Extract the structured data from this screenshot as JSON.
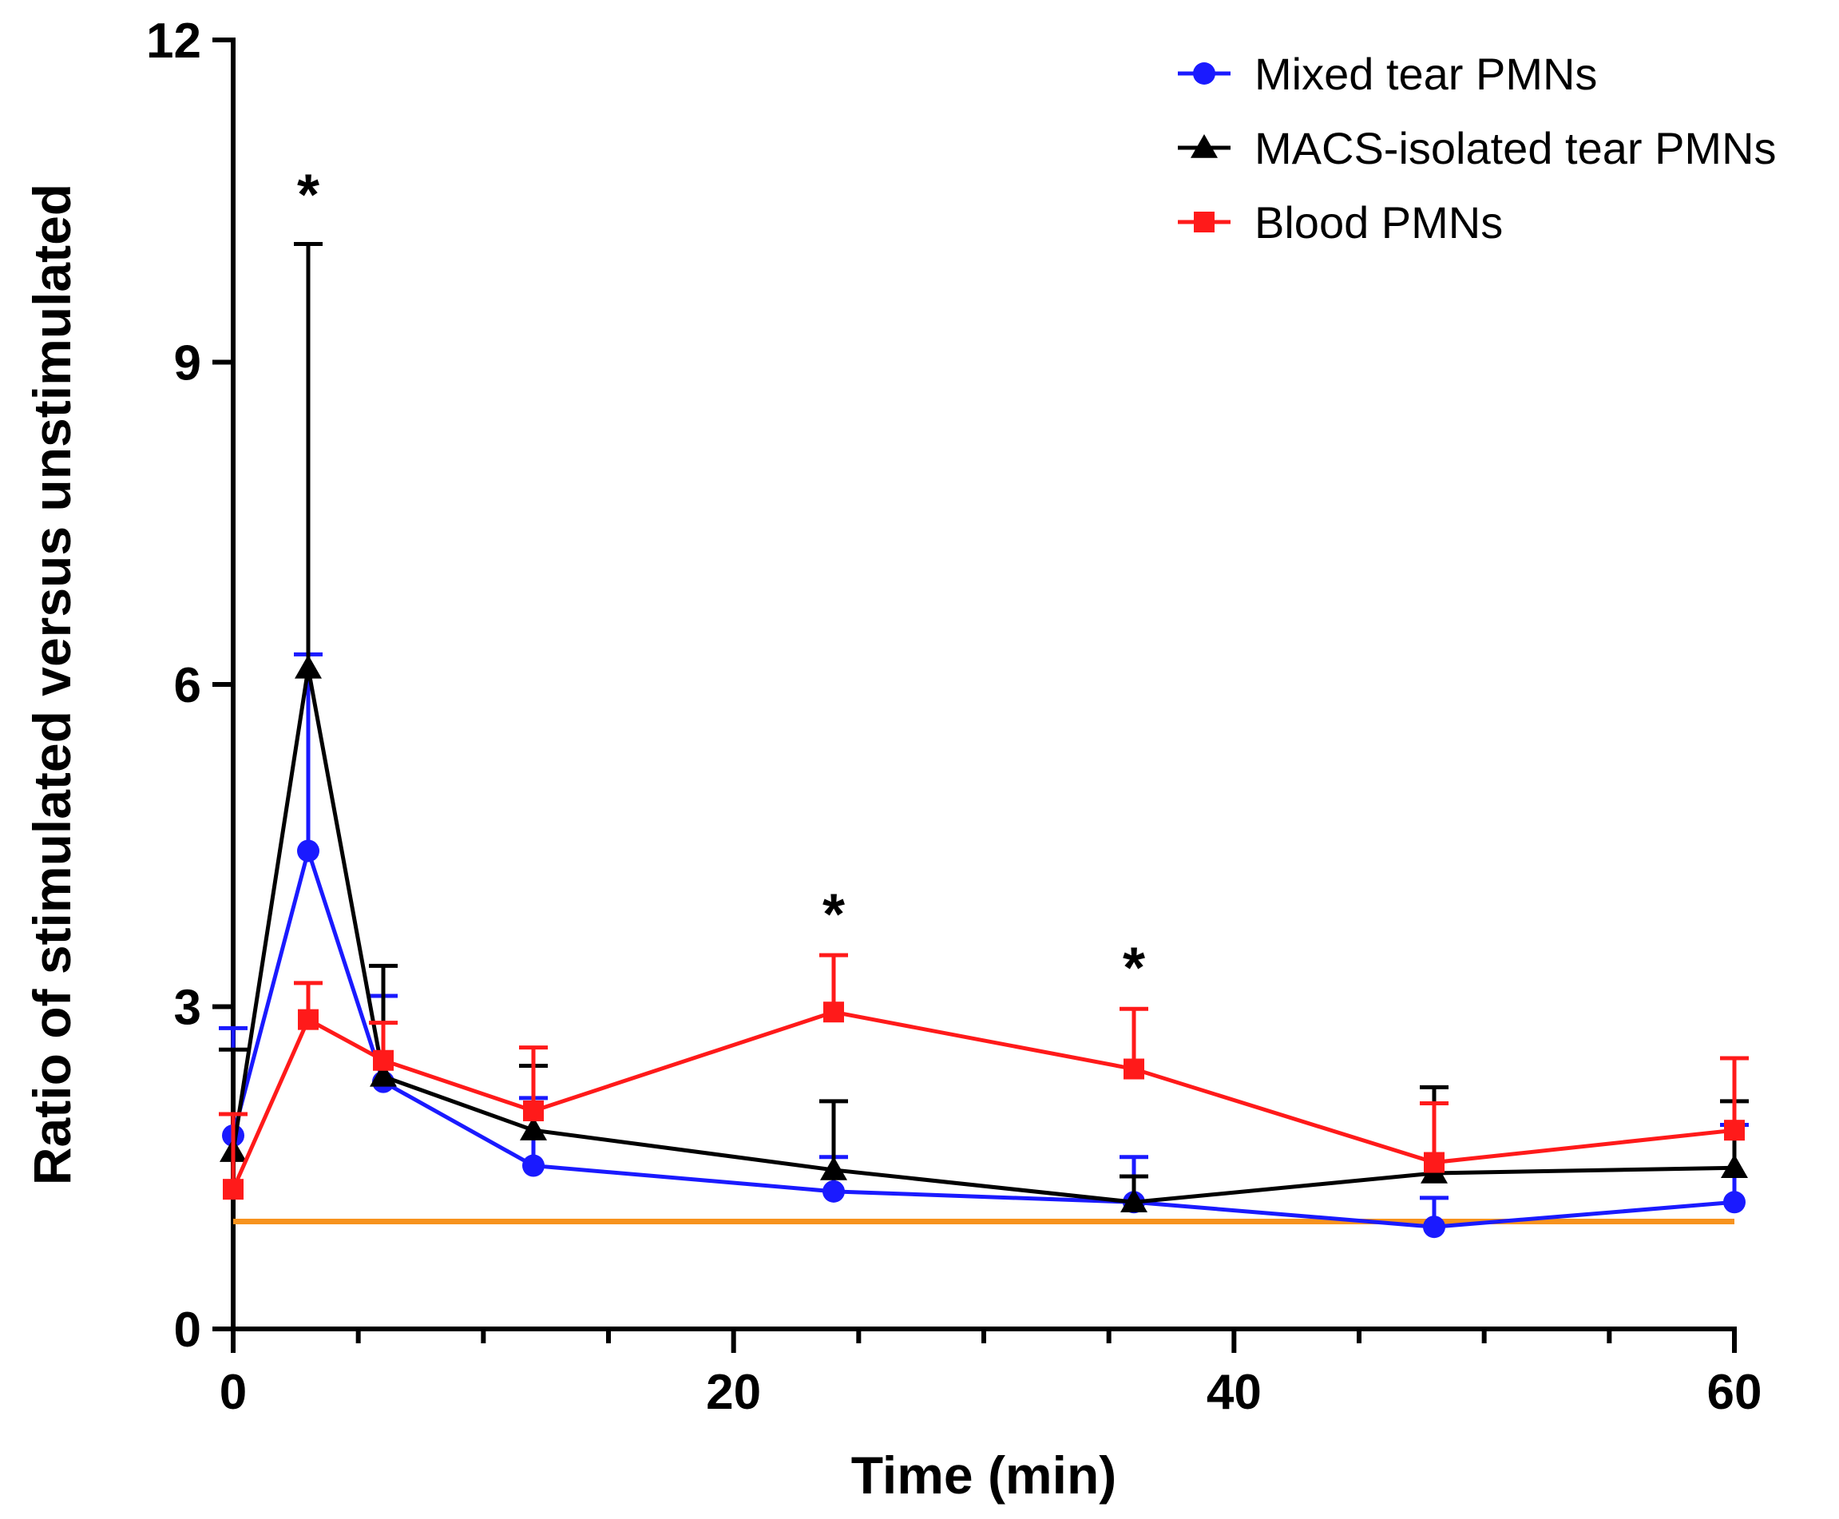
{
  "chart_data": {
    "type": "line",
    "title": "",
    "xlabel": "Time (min)",
    "ylabel": "Ratio of stimulated versus unstimulated",
    "xlim": [
      0,
      60
    ],
    "ylim": [
      0,
      12
    ],
    "x_ticks": [
      0,
      20,
      40,
      60
    ],
    "x_ticks_labels": [
      "0",
      "20",
      "40",
      "60"
    ],
    "x_minor_ticks": [
      5,
      10,
      15,
      25,
      30,
      35,
      45,
      50,
      55
    ],
    "y_ticks": [
      0,
      3,
      6,
      9,
      12
    ],
    "y_ticks_labels": [
      "0",
      "3",
      "6",
      "9",
      "12"
    ],
    "reference_line": {
      "y": 1.0,
      "color": "#f7931e"
    },
    "legend_position": "top-right",
    "series": [
      {
        "name": "Mixed tear PMNs",
        "color": "#1a1aff",
        "marker": "circle",
        "x": [
          0,
          3,
          6,
          12,
          24,
          36,
          48,
          60
        ],
        "values": [
          1.8,
          4.45,
          2.3,
          1.52,
          1.28,
          1.18,
          0.95,
          1.18
        ],
        "error_upper": [
          2.8,
          6.28,
          3.1,
          2.15,
          1.6,
          1.6,
          1.22,
          1.9
        ]
      },
      {
        "name": "MACS-isolated tear PMNs",
        "color": "#000000",
        "marker": "triangle",
        "x": [
          0,
          3,
          6,
          12,
          24,
          36,
          48,
          60
        ],
        "values": [
          1.65,
          6.15,
          2.35,
          1.85,
          1.48,
          1.18,
          1.45,
          1.5
        ],
        "error_upper": [
          2.6,
          10.1,
          3.38,
          2.45,
          2.12,
          1.42,
          2.25,
          2.12
        ]
      },
      {
        "name": "Blood PMNs",
        "color": "#ff1a1a",
        "marker": "square",
        "x": [
          0,
          3,
          6,
          12,
          24,
          36,
          48,
          60
        ],
        "values": [
          1.3,
          2.88,
          2.5,
          2.03,
          2.95,
          2.42,
          1.55,
          1.85
        ],
        "error_upper": [
          2.0,
          3.22,
          2.85,
          2.62,
          3.48,
          2.98,
          2.1,
          2.52
        ]
      }
    ],
    "annotations": [
      {
        "text": "*",
        "x": 3,
        "y": 10.6
      },
      {
        "text": "*",
        "x": 24,
        "y": 3.9
      },
      {
        "text": "*",
        "x": 36,
        "y": 3.4
      }
    ]
  }
}
